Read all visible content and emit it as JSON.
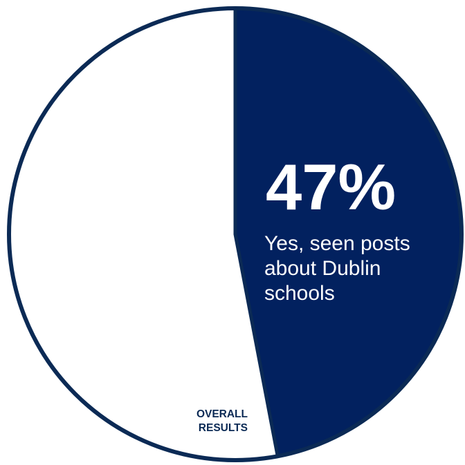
{
  "chart_data": {
    "type": "pie",
    "slices": [
      {
        "label": "Yes, seen posts about Dublin schools",
        "value": 47,
        "value_label": "47%",
        "color": "#02215f"
      },
      {
        "label": "",
        "value": 53,
        "color": "#ffffff"
      }
    ],
    "label_lines": [
      "Yes, seen posts",
      "about Dublin",
      "schools"
    ],
    "annotation_lines": [
      "OVERALL",
      "RESULTS"
    ],
    "start_angle_deg": 0,
    "direction": "clockwise",
    "outline_color": "#0b2a55",
    "legend": "none"
  }
}
